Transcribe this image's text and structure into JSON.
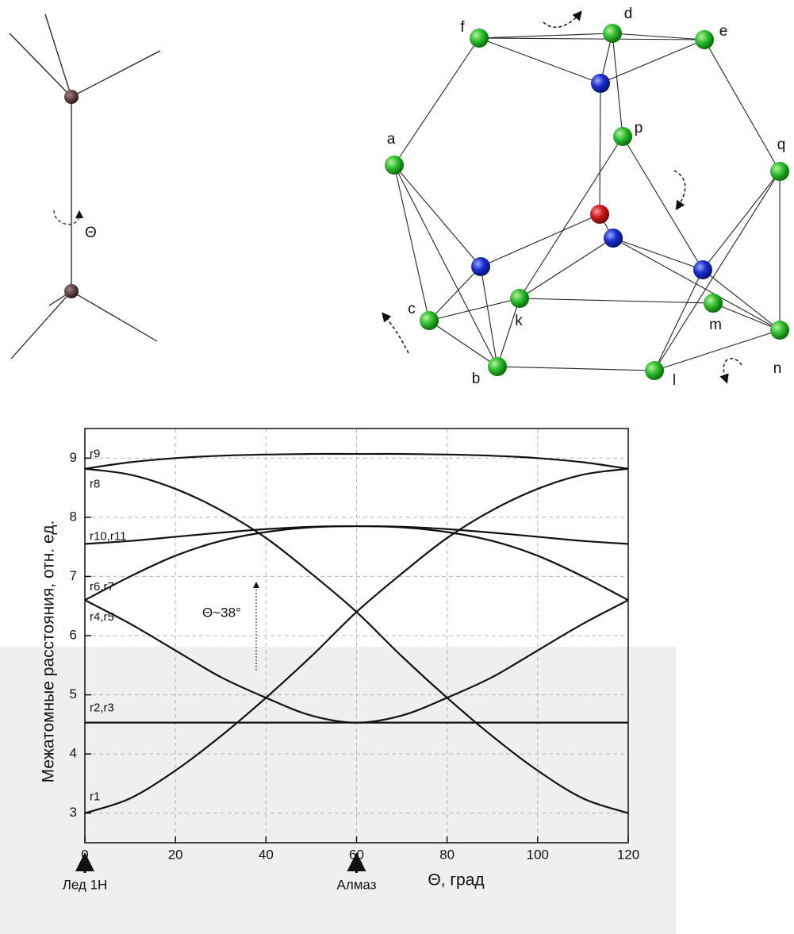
{
  "molecule": {
    "rotation_label": "Θ"
  },
  "cluster": {
    "labels": [
      "f",
      "d",
      "e",
      "a",
      "p",
      "q",
      "c",
      "k",
      "m",
      "n",
      "b",
      "l"
    ]
  },
  "chart_data": {
    "type": "line",
    "xlabel": "Θ, град",
    "ylabel": "Межатомные расстояния, отн. ед.",
    "annotation": "Θ~38°",
    "markers": [
      {
        "x": 0,
        "label": "Лед 1H"
      },
      {
        "x": 60,
        "label": "Алмаз"
      }
    ],
    "x": [
      0,
      10,
      20,
      30,
      40,
      50,
      60,
      70,
      80,
      90,
      100,
      110,
      120
    ],
    "series": [
      {
        "name": "r1",
        "color": "#111111",
        "values": [
          3.0,
          3.25,
          3.72,
          4.3,
          4.95,
          5.65,
          6.4,
          7.05,
          7.65,
          8.12,
          8.48,
          8.72,
          8.82
        ]
      },
      {
        "name": "r2,r3",
        "color": "#111111",
        "values": [
          4.53,
          4.53,
          4.53,
          4.53,
          4.53,
          4.53,
          4.53,
          4.53,
          4.53,
          4.53,
          4.53,
          4.53,
          4.53
        ]
      },
      {
        "name": "r4,r5",
        "color": "#111111",
        "values": [
          6.6,
          6.2,
          5.75,
          5.3,
          4.95,
          4.65,
          4.53,
          4.65,
          4.95,
          5.3,
          5.75,
          6.2,
          6.6
        ]
      },
      {
        "name": "r6,r7",
        "color": "#111111",
        "values": [
          6.6,
          7.0,
          7.35,
          7.6,
          7.75,
          7.83,
          7.85,
          7.83,
          7.75,
          7.6,
          7.35,
          7.0,
          6.6
        ]
      },
      {
        "name": "r8",
        "color": "#111111",
        "values": [
          8.82,
          8.72,
          8.48,
          8.12,
          7.65,
          7.05,
          6.4,
          5.65,
          4.95,
          4.3,
          3.72,
          3.25,
          3.0
        ]
      },
      {
        "name": "r9",
        "color": "#111111",
        "values": [
          8.82,
          8.93,
          9.0,
          9.04,
          9.06,
          9.07,
          9.07,
          9.07,
          9.06,
          9.04,
          9.0,
          8.93,
          8.82
        ]
      },
      {
        "name": "r10,r11",
        "color": "#111111",
        "values": [
          7.55,
          7.6,
          7.67,
          7.74,
          7.8,
          7.84,
          7.85,
          7.84,
          7.8,
          7.74,
          7.67,
          7.6,
          7.55
        ]
      }
    ],
    "xlim": [
      0,
      120
    ],
    "xticks": [
      0,
      20,
      40,
      60,
      80,
      100,
      120
    ],
    "ylim": [
      2.5,
      9.5
    ],
    "yticks": [
      3,
      4,
      5,
      6,
      7,
      8,
      9
    ],
    "grid": true
  }
}
